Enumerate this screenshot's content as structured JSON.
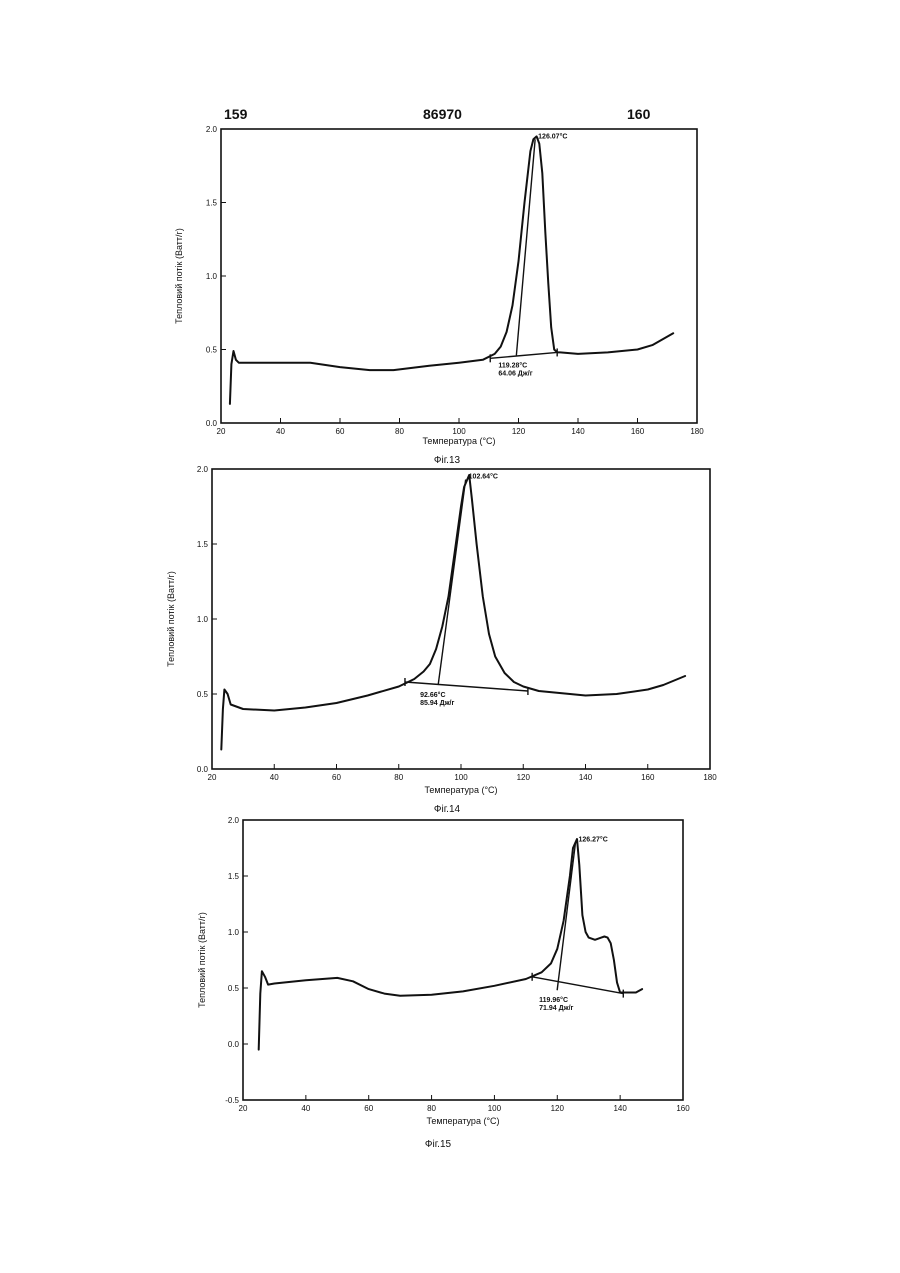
{
  "header": {
    "left": "159",
    "center": "86970",
    "right": "160"
  },
  "chart_data": [
    {
      "type": "line",
      "caption": "Фіг.13",
      "xlabel": "Температура (°C)",
      "ylabel": "Тепловий потік (Ватт/г)",
      "xlim": [
        20,
        180
      ],
      "ylim": [
        0.0,
        2.0
      ],
      "xticks": [
        "20",
        "40",
        "60",
        "80",
        "100",
        "120",
        "140",
        "160",
        "180"
      ],
      "yticks": [
        "0.0",
        "0.5",
        "1.0",
        "1.5",
        "2.0"
      ],
      "series": [
        {
          "x": [
            23,
            23.5,
            24.2,
            25,
            26,
            30,
            40,
            50,
            60,
            70,
            78,
            90,
            100,
            108,
            112,
            114,
            116,
            118,
            120,
            122,
            124,
            125,
            126.07,
            127,
            128,
            129,
            130,
            131,
            132,
            133,
            134,
            140,
            150,
            160,
            165,
            172
          ],
          "y": [
            0.13,
            0.4,
            0.49,
            0.43,
            0.41,
            0.41,
            0.41,
            0.41,
            0.38,
            0.36,
            0.36,
            0.39,
            0.41,
            0.43,
            0.47,
            0.52,
            0.62,
            0.8,
            1.1,
            1.5,
            1.85,
            1.93,
            1.95,
            1.9,
            1.7,
            1.3,
            0.95,
            0.65,
            0.5,
            0.48,
            0.48,
            0.47,
            0.48,
            0.5,
            0.53,
            0.61
          ]
        }
      ],
      "baseline": {
        "x": [
          110.5,
          133
        ],
        "y": [
          0.44,
          0.48
        ]
      },
      "onset_line": {
        "x": [
          119.28,
          125.6
        ],
        "y": [
          0.46,
          1.93
        ]
      },
      "annotations": {
        "peak": "126.07°C",
        "onset": "119.28°C",
        "enthalpy": "64.06 Дж/г"
      }
    },
    {
      "type": "line",
      "caption": "Фіг.14",
      "xlabel": "Температура (°C)",
      "ylabel": "Тепловий потік (Ватт/г)",
      "xlim": [
        20,
        180
      ],
      "ylim": [
        0.0,
        2.0
      ],
      "xticks": [
        "20",
        "40",
        "60",
        "80",
        "100",
        "120",
        "140",
        "160",
        "180"
      ],
      "yticks": [
        "0.0",
        "0.5",
        "1.0",
        "1.5",
        "2.0"
      ],
      "series": [
        {
          "x": [
            23,
            23.5,
            24,
            25,
            26,
            30,
            40,
            50,
            60,
            70,
            80,
            85,
            88,
            90,
            92,
            94,
            96,
            98,
            100,
            101,
            102.64,
            103.5,
            105,
            107,
            109,
            111,
            114,
            117,
            120,
            125,
            130,
            140,
            150,
            160,
            165,
            172
          ],
          "y": [
            0.13,
            0.4,
            0.53,
            0.5,
            0.43,
            0.4,
            0.39,
            0.41,
            0.44,
            0.49,
            0.55,
            0.6,
            0.65,
            0.7,
            0.8,
            0.95,
            1.15,
            1.45,
            1.75,
            1.88,
            1.96,
            1.8,
            1.5,
            1.15,
            0.9,
            0.75,
            0.64,
            0.58,
            0.55,
            0.52,
            0.51,
            0.49,
            0.5,
            0.53,
            0.56,
            0.62
          ]
        }
      ],
      "baseline": {
        "x": [
          82,
          121.5
        ],
        "y": [
          0.58,
          0.52
        ]
      },
      "onset_line": {
        "x": [
          92.66,
          101.5
        ],
        "y": [
          0.56,
          1.93
        ]
      },
      "annotations": {
        "peak": "102.64°C",
        "onset": "92.66°C",
        "enthalpy": "85.94 Дж/г"
      }
    },
    {
      "type": "line",
      "caption": "Фіг.15",
      "xlabel": "Температура (°C)",
      "ylabel": "Тепловий потік (Ватт/г)",
      "xlim": [
        20,
        160
      ],
      "ylim": [
        -0.5,
        2.0
      ],
      "xticks": [
        "20",
        "40",
        "60",
        "80",
        "100",
        "120",
        "140",
        "160"
      ],
      "yticks": [
        "-0.5",
        "0.0",
        "0.5",
        "1.0",
        "1.5",
        "2.0"
      ],
      "series": [
        {
          "x": [
            25,
            25.5,
            26,
            27,
            28,
            30,
            40,
            50,
            55,
            60,
            65,
            70,
            80,
            90,
            100,
            110,
            115,
            118,
            120,
            122,
            124,
            125,
            126.27,
            127,
            128,
            129,
            130,
            132,
            134,
            135,
            136,
            137,
            138,
            139,
            140,
            145,
            147
          ],
          "y": [
            -0.05,
            0.45,
            0.65,
            0.6,
            0.53,
            0.54,
            0.57,
            0.59,
            0.56,
            0.49,
            0.45,
            0.43,
            0.44,
            0.47,
            0.52,
            0.58,
            0.64,
            0.72,
            0.85,
            1.1,
            1.5,
            1.75,
            1.83,
            1.6,
            1.15,
            1.0,
            0.95,
            0.93,
            0.95,
            0.96,
            0.95,
            0.9,
            0.75,
            0.55,
            0.46,
            0.46,
            0.49
          ]
        }
      ],
      "baseline": {
        "x": [
          112,
          141
        ],
        "y": [
          0.6,
          0.45
        ]
      },
      "onset_line": {
        "x": [
          119.96,
          125.8
        ],
        "y": [
          0.48,
          1.8
        ]
      },
      "annotations": {
        "peak": "126.27°C",
        "onset": "119.96°C",
        "enthalpy": "71.94 Дж/г"
      }
    }
  ]
}
